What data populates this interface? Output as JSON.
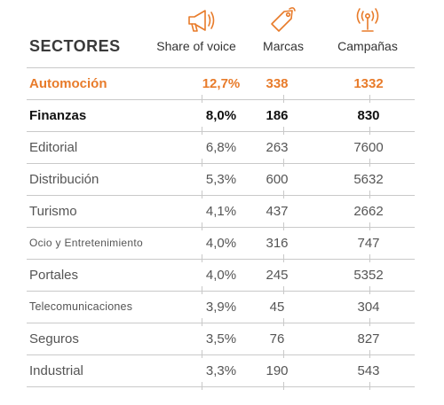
{
  "header": {
    "sectors_label": "SECTORES",
    "share_label": "Share of voice",
    "brands_label": "Marcas",
    "campaigns_label": "Campañas"
  },
  "icons": {
    "share": "megaphone-icon",
    "brands": "price-tag-icon",
    "campaigns": "antenna-icon",
    "color": "#e87b2a"
  },
  "colors": {
    "highlight": "#e87b2a",
    "text": "#555555",
    "bold_text": "#111111",
    "divider": "#c9c9c9"
  },
  "chart_data": {
    "type": "table",
    "columns": [
      "SECTORES",
      "Share of voice",
      "Marcas",
      "Campañas"
    ],
    "rows": [
      {
        "sector": "Automoción",
        "share": "12,7%",
        "brands": "338",
        "campaigns": "1332",
        "style": "orange"
      },
      {
        "sector": "Finanzas",
        "share": "8,0%",
        "brands": "186",
        "campaigns": "830",
        "style": "bold"
      },
      {
        "sector": "Editorial",
        "share": "6,8%",
        "brands": "263",
        "campaigns": "7600",
        "style": "normal"
      },
      {
        "sector": "Distribución",
        "share": "5,3%",
        "brands": "600",
        "campaigns": "5632",
        "style": "normal"
      },
      {
        "sector": "Turismo",
        "share": "4,1%",
        "brands": "437",
        "campaigns": "2662",
        "style": "normal"
      },
      {
        "sector": "Ocio y Entretenimiento",
        "share": "4,0%",
        "brands": "316",
        "campaigns": "747",
        "style": "small"
      },
      {
        "sector": "Portales",
        "share": "4,0%",
        "brands": "245",
        "campaigns": "5352",
        "style": "normal"
      },
      {
        "sector": "Telecomunicaciones",
        "share": "3,9%",
        "brands": "45",
        "campaigns": "304",
        "style": "smaller"
      },
      {
        "sector": "Seguros",
        "share": "3,5%",
        "brands": "76",
        "campaigns": "827",
        "style": "normal"
      },
      {
        "sector": "Industrial",
        "share": "3,3%",
        "brands": "190",
        "campaigns": "543",
        "style": "normal"
      }
    ]
  }
}
